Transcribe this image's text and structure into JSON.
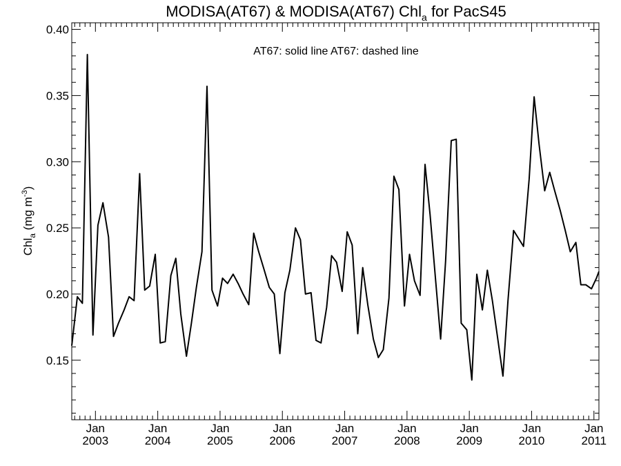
{
  "chart_data": {
    "type": "line",
    "title_main": "MODISA(AT67) & MODISA(AT67)  Chl",
    "title_sub": "a",
    "title_tail": " for PacS45",
    "legend_text": "AT67: solid line   AT67: dashed line",
    "ylabel_main": "Chl",
    "ylabel_sub": "a",
    "ylabel_unit_pre": " (mg m",
    "ylabel_unit_sup": "-3",
    "ylabel_unit_post": ")",
    "ylim": [
      0.105,
      0.405
    ],
    "xlim": [
      2002.62,
      2011.08
    ],
    "yticks": [
      {
        "v": 0.15,
        "label": "0.15"
      },
      {
        "v": 0.2,
        "label": "0.20"
      },
      {
        "v": 0.25,
        "label": "0.25"
      },
      {
        "v": 0.3,
        "label": "0.30"
      },
      {
        "v": 0.35,
        "label": "0.35"
      },
      {
        "v": 0.4,
        "label": "0.40"
      }
    ],
    "xticks": [
      {
        "v": 2003,
        "month": "Jan",
        "year": "2003"
      },
      {
        "v": 2004,
        "month": "Jan",
        "year": "2004"
      },
      {
        "v": 2005,
        "month": "Jan",
        "year": "2005"
      },
      {
        "v": 2006,
        "month": "Jan",
        "year": "2006"
      },
      {
        "v": 2007,
        "month": "Jan",
        "year": "2007"
      },
      {
        "v": 2008,
        "month": "Jan",
        "year": "2008"
      },
      {
        "v": 2009,
        "month": "Jan",
        "year": "2009"
      },
      {
        "v": 2010,
        "month": "Jan",
        "year": "2010"
      },
      {
        "v": 2011,
        "month": "Jan",
        "year": "2011"
      }
    ],
    "grid": false,
    "series": [
      {
        "style": "solid",
        "x": [
          2002.62,
          2002.71,
          2002.79,
          2002.87,
          2002.96,
          2003.04,
          2003.12,
          2003.21,
          2003.29,
          2003.37,
          2003.46,
          2003.54,
          2003.62,
          2003.71,
          2003.79,
          2003.87,
          2003.96,
          2004.04,
          2004.12,
          2004.21,
          2004.29,
          2004.37,
          2004.46,
          2004.54,
          2004.62,
          2004.71,
          2004.79,
          2004.87,
          2004.96,
          2005.04,
          2005.12,
          2005.21,
          2005.29,
          2005.37,
          2005.46,
          2005.54,
          2005.62,
          2005.71,
          2005.79,
          2005.87,
          2005.96,
          2006.04,
          2006.12,
          2006.21,
          2006.29,
          2006.37,
          2006.46,
          2006.54,
          2006.62,
          2006.71,
          2006.79,
          2006.87,
          2006.96,
          2007.04,
          2007.12,
          2007.21,
          2007.29,
          2007.37,
          2007.46,
          2007.54,
          2007.62,
          2007.71,
          2007.79,
          2007.87,
          2007.96,
          2008.04,
          2008.12,
          2008.21,
          2008.29,
          2008.37,
          2008.46,
          2008.54,
          2008.62,
          2008.71,
          2008.79,
          2008.87,
          2008.96,
          2009.04,
          2009.12,
          2009.21,
          2009.29,
          2009.37,
          2009.46,
          2009.54,
          2009.62,
          2009.71,
          2009.79,
          2009.87,
          2009.96,
          2010.04,
          2010.12,
          2010.21,
          2010.29,
          2010.37,
          2010.46,
          2010.54,
          2010.62,
          2010.71,
          2010.79,
          2010.87,
          2010.96,
          2011.04,
          2011.08
        ],
        "y": [
          0.161,
          0.198,
          0.193,
          0.381,
          0.169,
          0.252,
          0.269,
          0.243,
          0.168,
          0.178,
          0.188,
          0.198,
          0.195,
          0.291,
          0.203,
          0.206,
          0.23,
          0.163,
          0.164,
          0.214,
          0.227,
          0.185,
          0.153,
          0.178,
          0.205,
          0.232,
          0.357,
          0.203,
          0.191,
          0.212,
          0.208,
          0.215,
          0.208,
          0.2,
          0.192,
          0.246,
          0.232,
          0.218,
          0.205,
          0.2,
          0.155,
          0.201,
          0.218,
          0.25,
          0.241,
          0.2,
          0.201,
          0.165,
          0.163,
          0.19,
          0.229,
          0.224,
          0.202,
          0.247,
          0.237,
          0.17,
          0.22,
          0.192,
          0.166,
          0.152,
          0.158,
          0.197,
          0.289,
          0.279,
          0.191,
          0.23,
          0.21,
          0.199,
          0.298,
          0.26,
          0.21,
          0.166,
          0.225,
          0.316,
          0.317,
          0.178,
          0.173,
          0.135,
          0.215,
          0.188,
          0.218,
          0.195,
          0.165,
          0.138,
          0.195,
          0.248,
          0.242,
          0.236,
          0.287,
          0.349,
          0.313,
          0.278,
          0.292,
          0.278,
          0.263,
          0.248,
          0.232,
          0.239,
          0.207,
          0.207,
          0.204,
          0.212,
          0.217
        ]
      }
    ]
  }
}
